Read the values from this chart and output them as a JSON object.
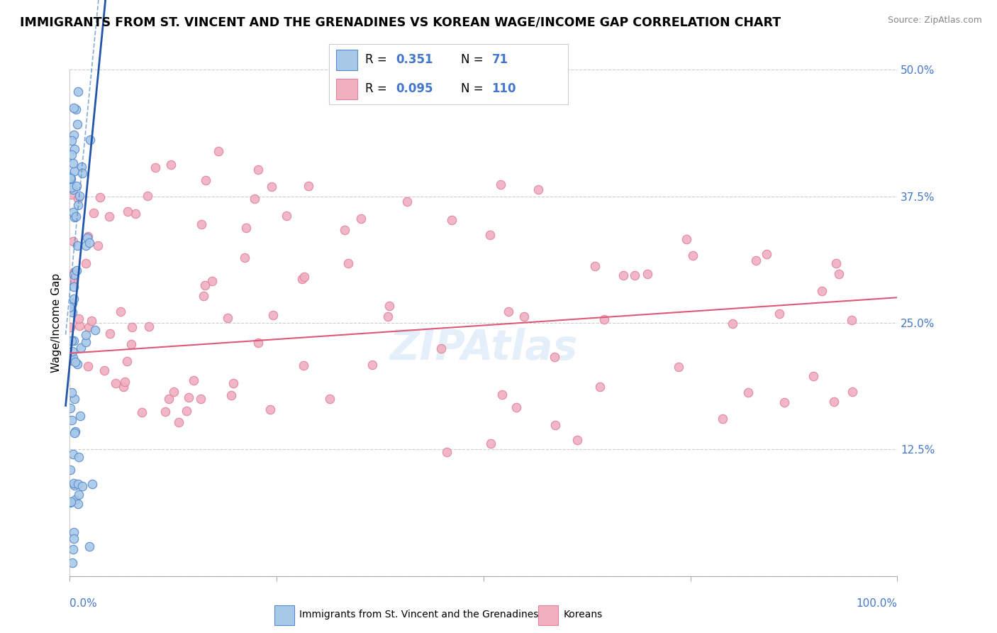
{
  "title": "IMMIGRANTS FROM ST. VINCENT AND THE GRENADINES VS KOREAN WAGE/INCOME GAP CORRELATION CHART",
  "source": "Source: ZipAtlas.com",
  "ylabel": "Wage/Income Gap",
  "legend_blue_R": "0.351",
  "legend_blue_N": "71",
  "legend_pink_R": "0.095",
  "legend_pink_N": "110",
  "legend_label_blue": "Immigrants from St. Vincent and the Grenadines",
  "legend_label_pink": "Koreans",
  "blue_dot_color": "#a8c8e8",
  "blue_edge_color": "#5588cc",
  "pink_dot_color": "#f0b0c0",
  "pink_edge_color": "#e08098",
  "blue_line_color": "#2255aa",
  "pink_line_color": "#e05878",
  "watermark": "ZIPAtlas",
  "xlim": [
    0,
    100
  ],
  "ylim": [
    0,
    50
  ],
  "yticks": [
    0,
    12.5,
    25.0,
    37.5,
    50.0
  ],
  "yticklabels": [
    "",
    "12.5%",
    "25.0%",
    "37.5%",
    "50.0%"
  ]
}
